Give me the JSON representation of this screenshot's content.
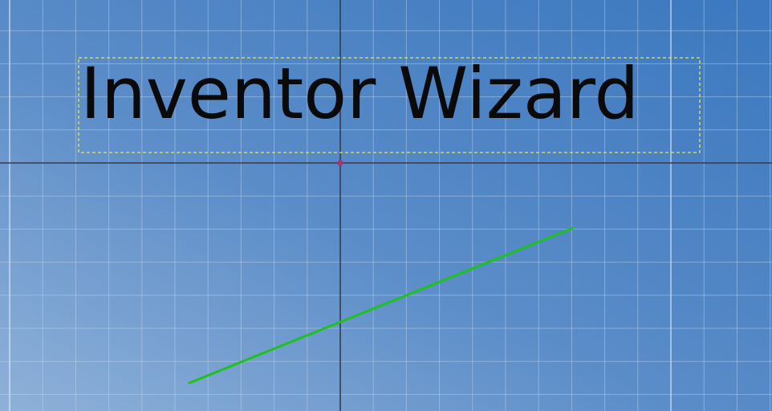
{
  "sketch": {
    "text": "Inventor Wizard"
  }
}
